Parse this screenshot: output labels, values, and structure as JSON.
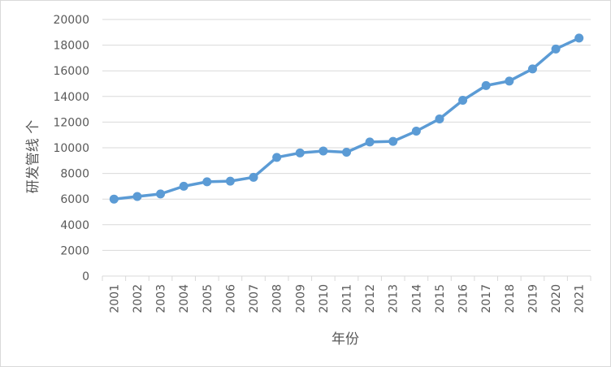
{
  "chart_data": {
    "type": "line",
    "title": "",
    "xlabel": "年份",
    "ylabel": "研发管线 个",
    "ylim": [
      0,
      20000
    ],
    "yticks": [
      0,
      2000,
      4000,
      6000,
      8000,
      10000,
      12000,
      14000,
      16000,
      18000,
      20000
    ],
    "grid": true,
    "legend": "none",
    "categories": [
      "2001",
      "2002",
      "2003",
      "2004",
      "2005",
      "2006",
      "2007",
      "2008",
      "2009",
      "2010",
      "2011",
      "2012",
      "2013",
      "2014",
      "2015",
      "2016",
      "2017",
      "2018",
      "2019",
      "2020",
      "2021"
    ],
    "series": [
      {
        "values": [
          6000,
          6200,
          6400,
          7000,
          7350,
          7400,
          7700,
          9250,
          9600,
          9750,
          9650,
          10450,
          10500,
          11300,
          12250,
          13700,
          14850,
          15200,
          16150,
          17700,
          18550
        ],
        "color": "#5b9bd5"
      }
    ],
    "colors": {
      "grid": "#d9d9d9",
      "text": "#595959",
      "line": "#5b9bd5"
    }
  }
}
